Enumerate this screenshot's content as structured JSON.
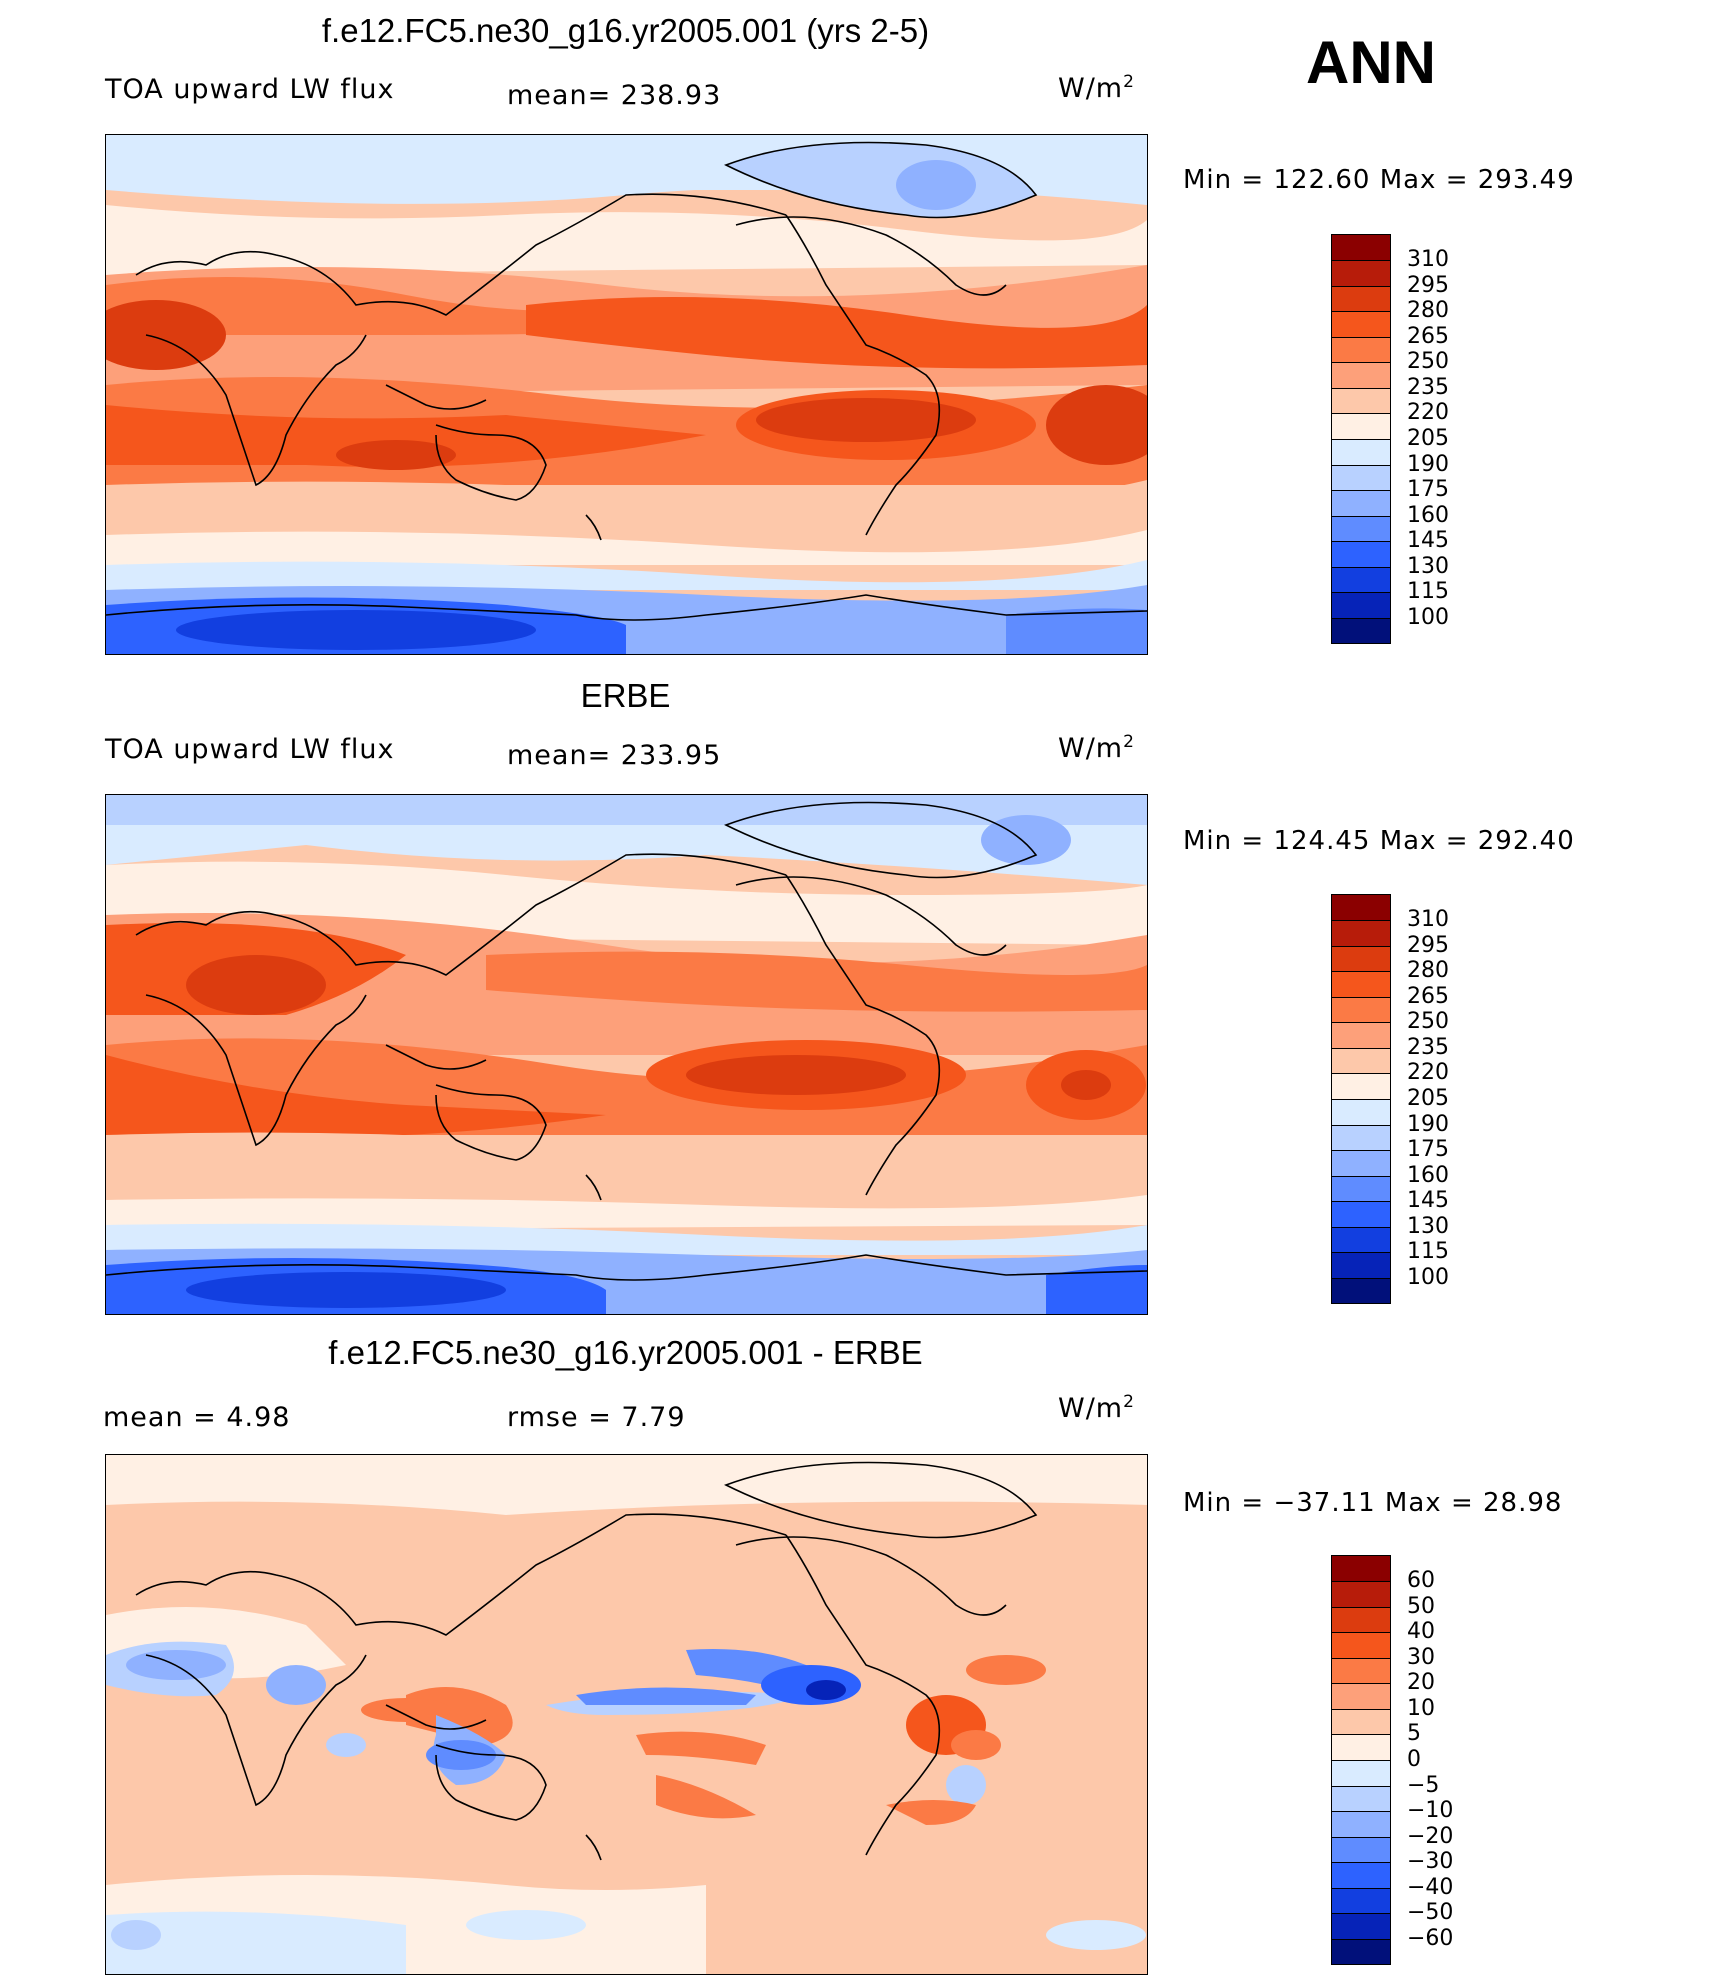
{
  "season": "ANN",
  "panels": [
    {
      "title": "f.e12.FC5.ne30_g16.yr2005.001 (yrs 2-5)",
      "left_label": "TOA upward LW flux",
      "center_label": "mean=  238.93",
      "units_base": "W/m",
      "units_exp": "2",
      "minmax": "Min  =  122.60  Max  =  293.49"
    },
    {
      "title": "ERBE",
      "left_label": "TOA upward LW flux",
      "center_label": "mean=  233.95",
      "units_base": "W/m",
      "units_exp": "2",
      "minmax": "Min  =  124.45  Max  =  292.40"
    },
    {
      "title": "f.e12.FC5.ne30_g16.yr2005.001 - ERBE",
      "left_label": "mean  =     4.98",
      "center_label": "rmse  =     7.79",
      "units_base": "W/m",
      "units_exp": "2",
      "minmax": "Min  =  −37.11  Max  =    28.98"
    }
  ],
  "colorbar_abs": {
    "levels": [
      "310",
      "295",
      "280",
      "265",
      "250",
      "235",
      "220",
      "205",
      "190",
      "175",
      "160",
      "145",
      "130",
      "115",
      "100"
    ],
    "colors": [
      "#8b0000",
      "#b71c0a",
      "#dc3c0f",
      "#f5561c",
      "#fb7a45",
      "#fda07a",
      "#fdc8aa",
      "#fff0e4",
      "#d9ebff",
      "#b8d1ff",
      "#8fb1ff",
      "#5f8cff",
      "#2d62ff",
      "#123fe0",
      "#0623b8",
      "#01107a"
    ]
  },
  "colorbar_diff": {
    "levels": [
      "60",
      "50",
      "40",
      "30",
      "20",
      "10",
      "5",
      "0",
      "−5",
      "−10",
      "−20",
      "−30",
      "−40",
      "−50",
      "−60"
    ],
    "colors": [
      "#8b0000",
      "#b71c0a",
      "#dc3c0f",
      "#f5561c",
      "#fb7a45",
      "#fda07a",
      "#fdc8aa",
      "#fff0e4",
      "#d9ebff",
      "#b8d1ff",
      "#8fb1ff",
      "#5f8cff",
      "#2d62ff",
      "#123fe0",
      "#0623b8",
      "#01107a"
    ]
  }
}
